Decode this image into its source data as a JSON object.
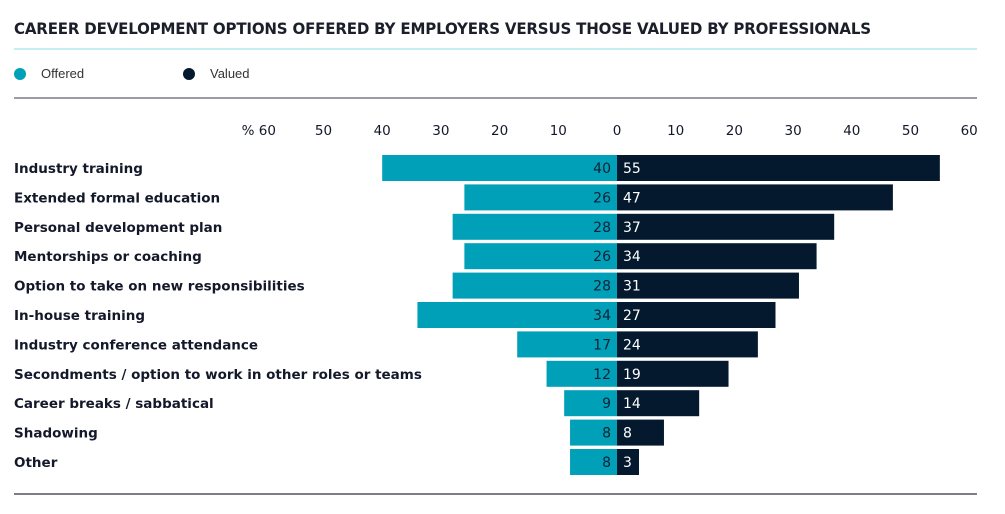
{
  "chart_data": {
    "type": "bar",
    "orientation": "horizontal-diverging",
    "title": "CAREER DEVELOPMENT OPTIONS OFFERED BY EMPLOYERS VERSUS THOSE VALUED BY PROFESSIONALS",
    "unit_label": "%",
    "categories": [
      "Industry training",
      "Extended formal education",
      "Personal development plan",
      "Mentorships or coaching",
      "Option to take on new responsibilities",
      "In-house training",
      "Industry conference attendance",
      "Secondments / option to work in other roles or teams",
      "Career breaks / sabbatical",
      "Shadowing",
      "Other"
    ],
    "series": [
      {
        "name": "Offered",
        "color": "#00a0b8",
        "side": "left",
        "values": [
          40,
          26,
          28,
          26,
          28,
          34,
          17,
          12,
          9,
          8,
          8
        ]
      },
      {
        "name": "Valued",
        "color": "#04182e",
        "side": "right",
        "values": [
          55,
          47,
          37,
          34,
          31,
          27,
          24,
          19,
          14,
          8,
          3
        ]
      }
    ],
    "left_ticks": [
      "% 60",
      "50",
      "40",
      "30",
      "20",
      "10"
    ],
    "right_ticks": [
      "0",
      "10",
      "20",
      "30",
      "40",
      "50",
      "60"
    ],
    "xlim": [
      -60,
      60
    ],
    "legend": "top-left",
    "grid": false
  }
}
